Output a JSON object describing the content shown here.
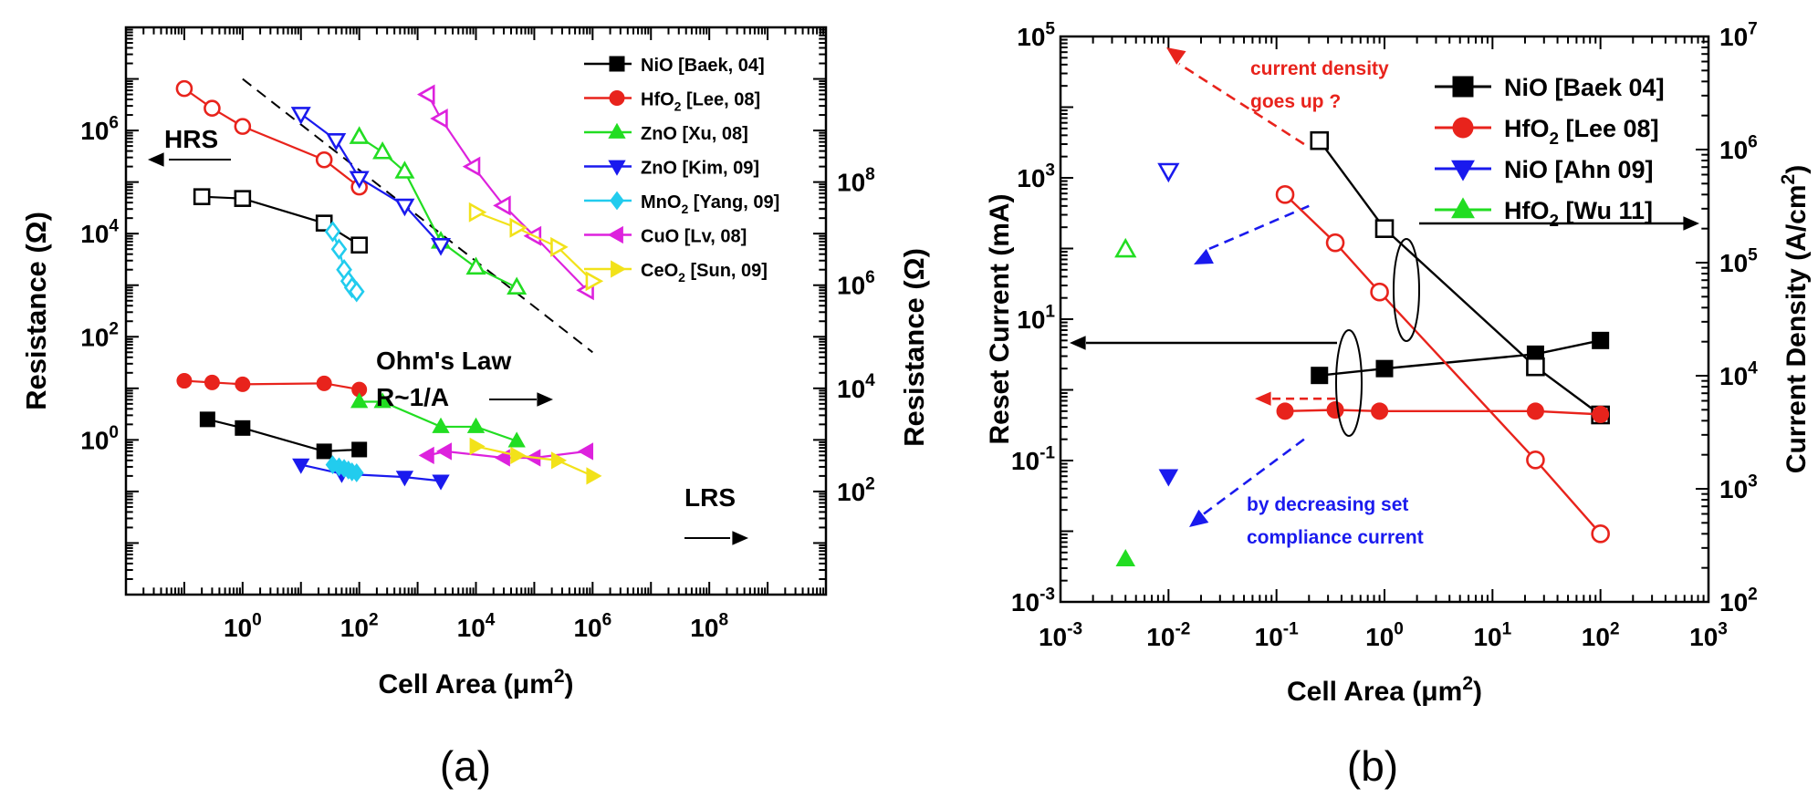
{
  "chart_data": [
    {
      "type": "scatter",
      "panel_label": "(a)",
      "xscale": "log",
      "yscale": "log",
      "xlim": [
        0.01,
        10000000000.0
      ],
      "ylim": [
        0.001,
        100000000.0
      ],
      "y2lim": [
        1,
        100000000000.0
      ],
      "xlabel": {
        "text": "Cell Area (",
        "sym": "μ",
        "unit": "m",
        "sup": "2",
        "close": ")"
      },
      "ylabel": "Resistance (Ω)",
      "y2label": "Resistance (Ω)",
      "xticks": [
        {
          "base": "10",
          "exp": "0",
          "v": 1
        },
        {
          "base": "10",
          "exp": "2",
          "v": 100
        },
        {
          "base": "10",
          "exp": "4",
          "v": 10000
        },
        {
          "base": "10",
          "exp": "6",
          "v": 1000000
        },
        {
          "base": "10",
          "exp": "8",
          "v": 100000000
        }
      ],
      "yticks": [
        {
          "base": "10",
          "exp": "0",
          "v": 1
        },
        {
          "base": "10",
          "exp": "2",
          "v": 100
        },
        {
          "base": "10",
          "exp": "4",
          "v": 10000
        },
        {
          "base": "10",
          "exp": "6",
          "v": 1000000
        }
      ],
      "y2ticks": [
        {
          "base": "10",
          "exp": "2",
          "v": 100
        },
        {
          "base": "10",
          "exp": "4",
          "v": 10000
        },
        {
          "base": "10",
          "exp": "6",
          "v": 1000000
        },
        {
          "base": "10",
          "exp": "8",
          "v": 100000000
        }
      ],
      "legend_position": "top-right",
      "series": [
        {
          "name": "NiO [Baek, 04]",
          "parts": [
            "NiO [Baek, 04]"
          ],
          "color": "#000000",
          "marker": "square",
          "hrs": [
            [
              0.2,
              52000
            ],
            [
              1,
              48000
            ],
            [
              25,
              16000
            ],
            [
              100,
              6000
            ]
          ],
          "lrs": [
            [
              0.25,
              2.5
            ],
            [
              1,
              1.7
            ],
            [
              25,
              0.6
            ],
            [
              100,
              0.65
            ]
          ]
        },
        {
          "name": "HfO2 [Lee, 08]",
          "parts": [
            "HfO",
            "2",
            " [Lee, 08]"
          ],
          "color": "#e8231c",
          "marker": "circle",
          "hrs": [
            [
              0.1,
              6500000
            ],
            [
              0.3,
              2700000
            ],
            [
              1,
              1200000
            ],
            [
              25,
              270000
            ],
            [
              100,
              80000
            ]
          ],
          "lrs": [
            [
              0.1,
              14
            ],
            [
              0.3,
              13
            ],
            [
              1,
              12
            ],
            [
              25,
              12.5
            ],
            [
              100,
              9.5
            ]
          ]
        },
        {
          "name": "ZnO [Xu, 08]",
          "parts": [
            "ZnO [Xu, 08]"
          ],
          "color": "#22dd22",
          "marker": "triangle-up",
          "hrs": [
            [
              100,
              750000
            ],
            [
              250,
              380000
            ],
            [
              600,
              160000
            ],
            [
              2500,
              7000
            ],
            [
              10000,
              2200
            ],
            [
              50000,
              900
            ]
          ],
          "lrs": [
            [
              100,
              5.5
            ],
            [
              250,
              5.5
            ],
            [
              2500,
              1.8
            ],
            [
              10000,
              1.8
            ],
            [
              50000,
              0.95
            ]
          ]
        },
        {
          "name": "ZnO [Kim, 09]",
          "parts": [
            "ZnO [Kim, 09]"
          ],
          "color": "#1a1aee",
          "marker": "triangle-down",
          "hrs": [
            [
              10,
              2100000
            ],
            [
              40,
              650000
            ],
            [
              100,
              120000
            ],
            [
              600,
              35000
            ],
            [
              2500,
              6000
            ]
          ],
          "lrs": [
            [
              10,
              0.33
            ],
            [
              50,
              0.22
            ],
            [
              600,
              0.19
            ],
            [
              2500,
              0.16
            ]
          ]
        },
        {
          "name": "MnO2 [Yang, 09]",
          "parts": [
            "MnO",
            "2",
            " [Yang, 09]"
          ],
          "color": "#22ccee",
          "marker": "diamond",
          "hrs": [
            [
              35,
              11000
            ],
            [
              45,
              5000
            ],
            [
              55,
              2000
            ],
            [
              65,
              1200
            ],
            [
              75,
              900
            ],
            [
              90,
              750
            ]
          ],
          "lrs": [
            [
              35,
              0.33
            ],
            [
              45,
              0.3
            ],
            [
              55,
              0.28
            ],
            [
              65,
              0.26
            ],
            [
              75,
              0.24
            ],
            [
              90,
              0.23
            ]
          ]
        },
        {
          "name": "CuO [Lv, 08]",
          "parts": [
            "CuO [Lv, 08]"
          ],
          "color": "#dd22dd",
          "marker": "triangle-left",
          "hrs": [
            [
              1500,
              5000000
            ],
            [
              2500,
              1700000
            ],
            [
              9000,
              200000
            ],
            [
              30000,
              35000
            ],
            [
              100000,
              9000
            ],
            [
              800000,
              800
            ]
          ],
          "lrs": [
            [
              1500,
              0.5
            ],
            [
              3000,
              0.6
            ],
            [
              30000,
              0.45
            ],
            [
              100000,
              0.45
            ],
            [
              800000,
              0.6
            ]
          ]
        },
        {
          "name": "CeO2 [Sun, 09]",
          "parts": [
            "CeO",
            "2",
            " [Sun, 09]"
          ],
          "color": "#f2e21a",
          "marker": "triangle-right",
          "hrs": [
            [
              10000,
              26000
            ],
            [
              50000,
              13000
            ],
            [
              250000,
              5500
            ],
            [
              1000000,
              1200
            ]
          ],
          "lrs": [
            [
              10000,
              0.75
            ],
            [
              50000,
              0.5
            ],
            [
              250000,
              0.4
            ],
            [
              1000000,
              0.2
            ]
          ]
        }
      ],
      "ohm_line": {
        "x": [
          1,
          1000000
        ],
        "y": [
          10000000,
          50
        ]
      },
      "annotations": {
        "hrs": "HRS",
        "lrs": "LRS",
        "ohm1": "Ohm's Law",
        "ohm2": "R~1/A"
      }
    },
    {
      "type": "scatter",
      "panel_label": "(b)",
      "xscale": "log",
      "yscale": "log",
      "xlim": [
        0.001,
        1000
      ],
      "ylim": [
        0.001,
        100000
      ],
      "y2lim": [
        100,
        10000000
      ],
      "xlabel": {
        "text": "Cell Area (",
        "sym": "μ",
        "unit": "m",
        "sup": "2",
        "close": ")"
      },
      "ylabel": "Reset Current (mA)",
      "y2label": {
        "text": "Current Density (A/cm",
        "sup": "2",
        "close": ")"
      },
      "xticks": [
        {
          "base": "10",
          "exp": "-3",
          "v": 0.001
        },
        {
          "base": "10",
          "exp": "-2",
          "v": 0.01
        },
        {
          "base": "10",
          "exp": "-1",
          "v": 0.1
        },
        {
          "base": "10",
          "exp": "0",
          "v": 1
        },
        {
          "base": "10",
          "exp": "1",
          "v": 10
        },
        {
          "base": "10",
          "exp": "2",
          "v": 100
        },
        {
          "base": "10",
          "exp": "3",
          "v": 1000
        }
      ],
      "yticks": [
        {
          "base": "10",
          "exp": "-3",
          "v": 0.001
        },
        {
          "base": "10",
          "exp": "-1",
          "v": 0.1
        },
        {
          "base": "10",
          "exp": "1",
          "v": 10
        },
        {
          "base": "10",
          "exp": "3",
          "v": 1000
        },
        {
          "base": "10",
          "exp": "5",
          "v": 100000
        }
      ],
      "y2ticks": [
        {
          "base": "10",
          "exp": "2",
          "v": 100
        },
        {
          "base": "10",
          "exp": "3",
          "v": 1000
        },
        {
          "base": "10",
          "exp": "4",
          "v": 10000
        },
        {
          "base": "10",
          "exp": "5",
          "v": 100000
        },
        {
          "base": "10",
          "exp": "6",
          "v": 1000000
        },
        {
          "base": "10",
          "exp": "7",
          "v": 10000000
        }
      ],
      "legend_position": "top-right",
      "series": [
        {
          "name": "NiO [Baek 04]",
          "parts": [
            "NiO [Baek 04]"
          ],
          "color": "#000000",
          "marker": "square",
          "reset_current_mA": [
            [
              0.25,
              1.6
            ],
            [
              1,
              2.0
            ],
            [
              25,
              3.2
            ],
            [
              100,
              5.0
            ]
          ],
          "current_density_A_cm2": [
            [
              0.25,
              1200000
            ],
            [
              1,
              200000
            ],
            [
              25,
              12000
            ],
            [
              100,
              4500
            ]
          ]
        },
        {
          "name": "HfO2 [Lee 08]",
          "parts": [
            "HfO",
            "2",
            " [Lee 08]"
          ],
          "color": "#e8231c",
          "marker": "circle",
          "reset_current_mA": [
            [
              0.12,
              0.5
            ],
            [
              0.35,
              0.52
            ],
            [
              0.9,
              0.5
            ],
            [
              25,
              0.5
            ],
            [
              100,
              0.45
            ]
          ],
          "current_density_A_cm2": [
            [
              0.12,
              400000
            ],
            [
              0.35,
              150000
            ],
            [
              0.9,
              55000
            ],
            [
              25,
              1800
            ],
            [
              100,
              400
            ]
          ]
        },
        {
          "name": "NiO [Ahn 09]",
          "parts": [
            "NiO [Ahn 09]"
          ],
          "color": "#1a1aee",
          "marker": "triangle-down",
          "reset_current_mA": [
            [
              0.01,
              0.06
            ]
          ],
          "current_density_A_cm2": [
            [
              0.01,
              650000
            ]
          ]
        },
        {
          "name": "HfO2 [Wu 11]",
          "parts": [
            "HfO",
            "2",
            " [Wu 11]"
          ],
          "color": "#22dd22",
          "marker": "triangle-up",
          "reset_current_mA": [
            [
              0.004,
              0.004
            ]
          ],
          "current_density_A_cm2": [
            [
              0.004,
              130000
            ]
          ]
        }
      ],
      "annotations": {
        "density_up_1": "current density",
        "density_up_2": "goes up ?",
        "decrease_1": "by decreasing set",
        "decrease_2": "compliance current"
      }
    }
  ]
}
